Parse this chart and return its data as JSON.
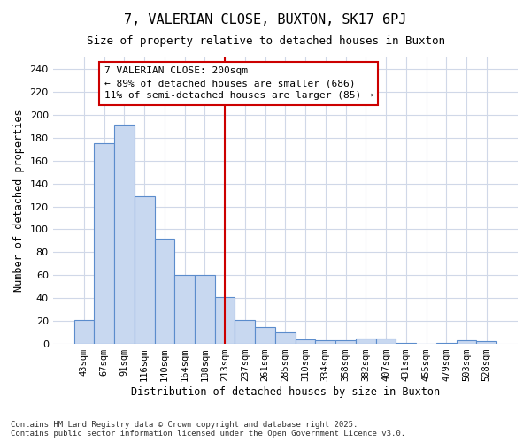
{
  "title1": "7, VALERIAN CLOSE, BUXTON, SK17 6PJ",
  "title2": "Size of property relative to detached houses in Buxton",
  "xlabel": "Distribution of detached houses by size in Buxton",
  "ylabel": "Number of detached properties",
  "categories": [
    "43sqm",
    "67sqm",
    "91sqm",
    "116sqm",
    "140sqm",
    "164sqm",
    "188sqm",
    "213sqm",
    "237sqm",
    "261sqm",
    "285sqm",
    "310sqm",
    "334sqm",
    "358sqm",
    "382sqm",
    "407sqm",
    "431sqm",
    "455sqm",
    "479sqm",
    "503sqm",
    "528sqm"
  ],
  "values": [
    21,
    175,
    191,
    129,
    92,
    60,
    60,
    41,
    21,
    15,
    10,
    4,
    3,
    3,
    5,
    5,
    1,
    0,
    1,
    3,
    2
  ],
  "bar_color": "#c8d8f0",
  "bar_edge_color": "#5b8ccc",
  "vline_x": 7,
  "vline_color": "#cc0000",
  "annotation_text": "7 VALERIAN CLOSE: 200sqm\n← 89% of detached houses are smaller (686)\n11% of semi-detached houses are larger (85) →",
  "annotation_box_color": "#ffffff",
  "annotation_box_edge": "#cc0000",
  "ylim": [
    0,
    250
  ],
  "yticks": [
    0,
    20,
    40,
    60,
    80,
    100,
    120,
    140,
    160,
    180,
    200,
    220,
    240
  ],
  "bg_color": "#ffffff",
  "grid_color": "#d0d8e8",
  "footer": "Contains HM Land Registry data © Crown copyright and database right 2025.\nContains public sector information licensed under the Open Government Licence v3.0."
}
